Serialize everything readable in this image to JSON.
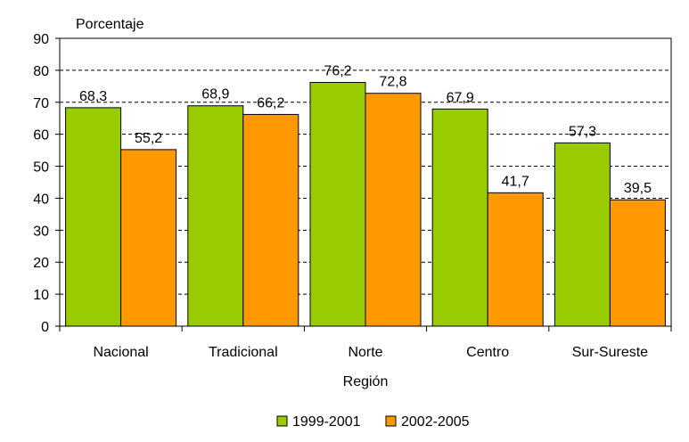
{
  "chart_data": {
    "type": "bar",
    "ylabel": "Porcentaje",
    "xlabel": "Región",
    "categories": [
      "Nacional",
      "Tradicional",
      "Norte",
      "Centro",
      "Sur-Sureste"
    ],
    "series": [
      {
        "name": "1999-2001",
        "values": [
          68.3,
          68.9,
          76.2,
          67.9,
          57.3
        ],
        "labels": [
          "68,3",
          "68,9",
          "76,2",
          "67,9",
          "57,3"
        ],
        "color": "#99cc00"
      },
      {
        "name": "2002-2005",
        "values": [
          55.2,
          66.2,
          72.8,
          41.7,
          39.5
        ],
        "labels": [
          "55,2",
          "66,2",
          "72,8",
          "41,7",
          "39,5"
        ],
        "color": "#ff9900"
      }
    ],
    "ylim": [
      0,
      90
    ],
    "yticks": [
      0,
      10,
      20,
      30,
      40,
      50,
      60,
      70,
      80,
      90
    ],
    "grid": true,
    "grid_style": "dashed",
    "legend_position": "bottom"
  }
}
